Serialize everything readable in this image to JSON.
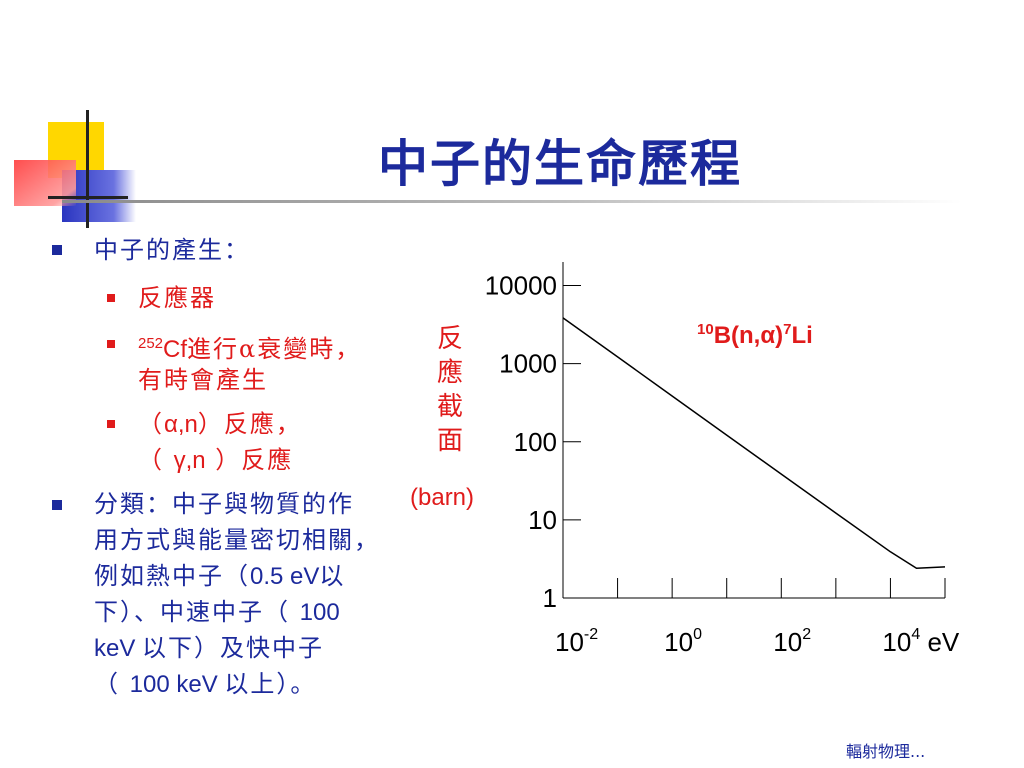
{
  "title": "中子的生命歷程",
  "bullets": {
    "b1": "中子的產生：",
    "sub1": "反應器",
    "sub2_sup": "252",
    "sub2_cf": "Cf",
    "sub2_rest": "進行α衰變時，",
    "sub2_line2": "有時會產生",
    "sub3_line1_pre": "（",
    "sub3_line1_sym": "α,n",
    "sub3_line1_post": "）反應，",
    "sub3_line2_pre": "（ ",
    "sub3_line2_sym": "γ,n",
    "sub3_line2_post": " ）反應",
    "b2_line1": "分類：中子與物質的作",
    "b2_line2": "用方式與能量密切相關，",
    "b2_line3_a": "例如熱中子（",
    "b2_line3_b": "0.5 eV",
    "b2_line3_c": "以",
    "b2_line4_a": "下）、中速中子（ ",
    "b2_line4_b": "100",
    "b2_line5_a": "keV ",
    "b2_line5_b": "以下）及快中子",
    "b2_line6_a": "（ ",
    "b2_line6_b": "100 keV ",
    "b2_line6_c": "以上）。"
  },
  "ylabel": "反應截面",
  "ylabel_unit": "(barn)",
  "footer": "輻射物理...",
  "colors": {
    "title": "#1c2a9c",
    "red": "#e01b1b",
    "blue": "#1c2a9c"
  },
  "chart_data": {
    "type": "line",
    "title_sup1": "10",
    "title_mid": "B(n,α)",
    "title_sup2": "7",
    "title_end": "Li",
    "x_scale": "log",
    "y_scale": "log",
    "xlim": [
      0.01,
      100000
    ],
    "ylim": [
      1,
      20000
    ],
    "yticks": [
      {
        "value": 10000,
        "label": "10000"
      },
      {
        "value": 1000,
        "label": "1000"
      },
      {
        "value": 100,
        "label": "100"
      },
      {
        "value": 10,
        "label": "10"
      },
      {
        "value": 1,
        "label": "1"
      }
    ],
    "xticks": [
      {
        "value": 0.01,
        "base": "10",
        "exp": "-2",
        "suffix": ""
      },
      {
        "value": 1,
        "base": "10",
        "exp": "0",
        "suffix": ""
      },
      {
        "value": 100,
        "base": "10",
        "exp": "2",
        "suffix": ""
      },
      {
        "value": 10000,
        "base": "10",
        "exp": "4",
        "suffix": " eV"
      }
    ],
    "minor_x": [
      0.1,
      10,
      1000,
      100000
    ],
    "series": [
      {
        "x": [
          0.01,
          0.1,
          1,
          10,
          100,
          1000,
          10000,
          30000,
          100000
        ],
        "y": [
          3850,
          1218,
          385,
          121.8,
          38.5,
          12.2,
          3.9,
          2.4,
          2.5
        ]
      }
    ]
  }
}
